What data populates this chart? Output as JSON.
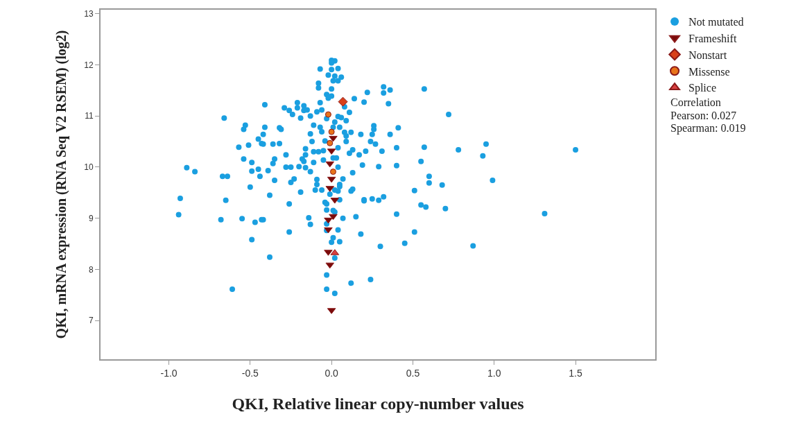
{
  "chart_data": {
    "type": "scatter",
    "xlabel": "QKI, Relative linear copy-number values",
    "ylabel": "QKI, mRNA expression (RNA Seq V2 RSEM) (log2)",
    "annotations": [
      "Correlation",
      "Pearson: 0.027",
      "Spearman: 0.019"
    ],
    "xlim": [
      -1.42,
      1.99
    ],
    "ylim": [
      6.24,
      13.08
    ],
    "xticks": [
      {
        "value": -1,
        "label": "-1.0"
      },
      {
        "value": -0.5,
        "label": "-0.5"
      },
      {
        "value": 0,
        "label": "0.0"
      },
      {
        "value": 0.5,
        "label": "0.5"
      },
      {
        "value": 1,
        "label": "1.0"
      },
      {
        "value": 1.5,
        "label": "1.5"
      }
    ],
    "yticks": [
      7,
      8,
      9,
      10,
      11,
      12,
      13
    ],
    "grid": false,
    "legend": "top right",
    "series": [
      {
        "name": "Not mutated",
        "color": "#1a9fe0",
        "marker": "circle",
        "x": [
          -0.66,
          -0.53,
          -0.54,
          -0.42,
          -0.45,
          -0.43,
          -0.57,
          -0.51,
          -0.54,
          -0.49,
          -0.89,
          -0.84,
          -0.49,
          -0.45,
          -0.41,
          0,
          0.02,
          0,
          -0.07,
          0,
          0.04,
          -0.02,
          0.02,
          0.06,
          -0.08,
          -0.08,
          0.01,
          0.04,
          0,
          -0.03,
          0,
          -0.02,
          0.14,
          0.2,
          0.22,
          0.32,
          0.36,
          0.32,
          0.35,
          0.57,
          0.72,
          0.08,
          0.11,
          -0.21,
          -0.17,
          -0.29,
          -0.21,
          -0.26,
          -0.17,
          -0.15,
          -0.24,
          -0.19,
          -0.13,
          -0.07,
          -0.09,
          -0.06,
          0.04,
          0.06,
          0.09,
          0.02,
          -0.03,
          -0.11,
          -0.07,
          0.01,
          0.05,
          0.08,
          0.12,
          0.09,
          0.26,
          0.26,
          0.25,
          0.41,
          0.36,
          0.18,
          -0.13,
          -0.06,
          -0.41,
          -0.32,
          -0.31,
          -0.12,
          -0.04,
          0.09,
          0.24,
          0.27,
          0.4,
          0.57,
          0.78,
          -0.42,
          -0.36,
          -0.32,
          -0.16,
          -0.28,
          -0.11,
          -0.08,
          -0.05,
          0.04,
          0.11,
          0.13,
          0.17,
          0.21,
          0.31,
          -0.18,
          -0.17,
          -0.16,
          -0.35,
          -0.36,
          -0.11,
          -0.05,
          0.01,
          0.03,
          0.55,
          -0.28,
          -0.25,
          -0.2,
          -0.16,
          -0.13,
          -0.39,
          0.04,
          0.19,
          0.29,
          0.4,
          0.13,
          -0.67,
          -0.64,
          -0.44,
          -0.5,
          -0.93,
          -0.65,
          -0.94,
          -0.68,
          -0.55,
          -0.47,
          -0.43,
          -0.49,
          -0.61,
          -0.35,
          -0.23,
          -0.25,
          -0.38,
          -0.19,
          -0.26,
          -0.42,
          -0.14,
          -0.13,
          -0.26,
          -0.38,
          -0.09,
          -0.09,
          -0.1,
          -0.06,
          0.05,
          0.02,
          0.05,
          -0.01,
          0.05,
          -0.04,
          -0.03,
          -0.03,
          0.01,
          0.02,
          0.07,
          -0.03,
          -0.03,
          0.04,
          0.01,
          0,
          0.05,
          0.02,
          -0.03,
          -0.03,
          0.02,
          0.07,
          0.04,
          0.12,
          0.13,
          0.15,
          0.18,
          0.2,
          0.2,
          0.25,
          0.29,
          0.32,
          0.3,
          0.12,
          0.24,
          0.4,
          0.45,
          0.51,
          0.51,
          0.6,
          0.6,
          0.68,
          0.55,
          0.58,
          0.7,
          0.87,
          0.99,
          1.31,
          0.95,
          0.93,
          1.5
        ],
        "values": [
          10.96,
          10.82,
          10.74,
          10.64,
          10.55,
          10.46,
          10.39,
          10.43,
          10.16,
          10.09,
          9.99,
          9.91,
          9.92,
          9.96,
          11.22,
          12.09,
          12.08,
          12.04,
          11.92,
          11.91,
          11.93,
          11.8,
          11.78,
          11.76,
          11.64,
          11.55,
          11.69,
          11.69,
          11.53,
          11.42,
          11.39,
          11.35,
          11.34,
          11.27,
          11.46,
          11.57,
          11.51,
          11.45,
          11.24,
          11.53,
          11.03,
          11.18,
          11.07,
          11.26,
          11.2,
          11.16,
          11.16,
          11.11,
          11.11,
          11.12,
          11.03,
          10.96,
          11,
          11.26,
          11.08,
          11.12,
          10.99,
          10.97,
          10.91,
          10.88,
          10.95,
          10.82,
          10.78,
          10.78,
          10.78,
          10.68,
          10.68,
          10.61,
          10.81,
          10.74,
          10.64,
          10.77,
          10.64,
          10.64,
          10.65,
          10.69,
          10.78,
          10.77,
          10.74,
          10.5,
          10.51,
          10.5,
          10.5,
          10.45,
          10.38,
          10.39,
          10.34,
          10.45,
          10.45,
          10.46,
          10.36,
          10.24,
          10.3,
          10.3,
          10.32,
          10.38,
          10.27,
          10.34,
          10.24,
          10.31,
          10.31,
          10.16,
          10.11,
          10.24,
          10.16,
          10.07,
          10.09,
          10.14,
          10.18,
          10.18,
          10.11,
          10,
          10,
          10.01,
          9.99,
          9.91,
          9.93,
          10,
          10.04,
          10.01,
          10.03,
          9.89,
          9.82,
          9.82,
          9.82,
          9.61,
          9.39,
          9.35,
          9.07,
          8.97,
          8.99,
          8.92,
          8.97,
          8.58,
          7.61,
          9.74,
          9.77,
          9.7,
          9.45,
          9.51,
          9.28,
          8.97,
          9.01,
          8.88,
          8.73,
          8.24,
          9.76,
          9.66,
          9.55,
          9.55,
          9.66,
          9.55,
          9.62,
          9.47,
          9.36,
          9.31,
          9.28,
          9.16,
          9.15,
          9.12,
          9,
          8.89,
          8.76,
          8.77,
          8.62,
          8.53,
          8.54,
          8.22,
          7.89,
          7.61,
          7.53,
          9.77,
          9.53,
          9.53,
          9.57,
          9.03,
          8.69,
          9.36,
          9.34,
          9.38,
          9.35,
          9.42,
          8.45,
          7.73,
          7.8,
          9.08,
          8.51,
          8.73,
          9.54,
          9.82,
          9.69,
          9.65,
          9.26,
          9.22,
          9.19,
          8.46,
          9.74,
          9.09,
          10.45,
          10.22,
          10.34
        ]
      },
      {
        "name": "Frameshift",
        "color": "#7a0a0a",
        "marker": "triangle-down",
        "x": [
          0.01,
          0,
          -0.01,
          0,
          -0.01,
          0.02,
          0.01,
          -0.02,
          -0.02,
          -0.02,
          -0.01,
          0
        ],
        "values": [
          10.57,
          10.32,
          10.07,
          9.77,
          9.59,
          9.36,
          9.04,
          8.97,
          8.78,
          8.34,
          8.09,
          7.2
        ]
      },
      {
        "name": "Nonstart",
        "color": "#d9401a",
        "marker": "diamond",
        "x": [
          0.07
        ],
        "values": [
          11.28
        ]
      },
      {
        "name": "Missense",
        "color": "#e8731a",
        "marker": "circle",
        "x": [
          -0.02,
          0,
          -0.01,
          0.01
        ],
        "values": [
          11.03,
          10.69,
          10.47,
          9.91
        ]
      },
      {
        "name": "Splice",
        "color": "#d94040",
        "marker": "triangle",
        "x": [
          0.02
        ],
        "values": [
          8.32
        ]
      }
    ]
  }
}
